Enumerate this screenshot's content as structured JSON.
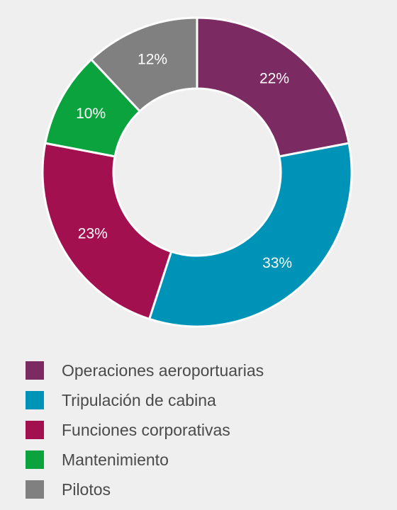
{
  "chart_data": {
    "type": "pie",
    "donut": true,
    "categories": [
      "Operaciones aeroportuarias",
      "Tripulación de cabina",
      "Funciones corporativas",
      "Mantenimiento",
      "Pilotos"
    ],
    "values": [
      22,
      33,
      23,
      10,
      12
    ],
    "value_labels": [
      "22%",
      "33%",
      "23%",
      "10%",
      "12%"
    ],
    "colors": [
      "#7b2a62",
      "#0093b8",
      "#a3104f",
      "#0ba33e",
      "#808080"
    ],
    "start_angle_deg": 0,
    "direction": "clockwise",
    "legend_position": "bottom"
  }
}
